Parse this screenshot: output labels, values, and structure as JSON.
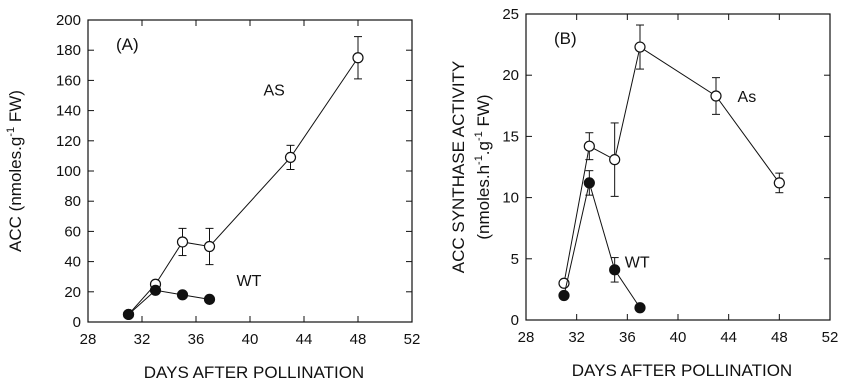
{
  "chart_data": [
    {
      "type": "line",
      "panel_label": "(A)",
      "xlabel": "DAYS AFTER POLLINATION",
      "ylabel_main": "ACC (nmoles.g",
      "ylabel_sup": "-1",
      "ylabel_end": " FW)",
      "xlim": [
        28,
        52
      ],
      "ylim": [
        0,
        200
      ],
      "xticks": [
        28,
        32,
        36,
        40,
        44,
        48,
        52
      ],
      "yticks": [
        0,
        20,
        40,
        60,
        80,
        100,
        120,
        140,
        160,
        180,
        200
      ],
      "grid": false,
      "series": [
        {
          "name": "AS",
          "marker": "open-circle",
          "x": [
            31,
            33,
            35,
            37,
            43,
            48
          ],
          "y": [
            5,
            25,
            53,
            50,
            109,
            175
          ],
          "err": [
            0,
            2,
            9,
            12,
            8,
            14
          ],
          "label_pos": [
            41,
            150
          ]
        },
        {
          "name": "WT",
          "marker": "filled-circle",
          "x": [
            31,
            33,
            35,
            37
          ],
          "y": [
            5,
            21,
            18,
            15
          ],
          "err": [
            0,
            2,
            0,
            0
          ],
          "label_pos": [
            39,
            24
          ]
        }
      ]
    },
    {
      "type": "line",
      "panel_label": "(B)",
      "xlabel": "DAYS AFTER POLLINATION",
      "ylabel_line1": "ACC SYNTHASE ACTIVITY",
      "ylabel_line2_parts": [
        "(nmoles.h",
        "-1",
        ".g",
        "-1",
        " FW)"
      ],
      "xlim": [
        28,
        52
      ],
      "ylim": [
        0,
        25
      ],
      "xticks": [
        28,
        32,
        36,
        40,
        44,
        48,
        52
      ],
      "yticks": [
        0,
        5,
        10,
        15,
        20,
        25
      ],
      "grid": false,
      "series": [
        {
          "name": "As",
          "marker": "open-circle",
          "x": [
            31,
            33,
            35,
            37,
            43,
            48
          ],
          "y": [
            3,
            14.2,
            13.1,
            22.3,
            18.3,
            11.2
          ],
          "err": [
            0,
            1.1,
            3,
            1.8,
            1.5,
            0.8
          ],
          "label_pos": [
            44.7,
            17.8
          ]
        },
        {
          "name": "WT",
          "marker": "filled-circle",
          "x": [
            31,
            33,
            35,
            37
          ],
          "y": [
            2,
            11.2,
            4.1,
            1
          ],
          "err": [
            0,
            1,
            1,
            0
          ],
          "label_pos": [
            35.8,
            4.3
          ]
        }
      ]
    }
  ]
}
